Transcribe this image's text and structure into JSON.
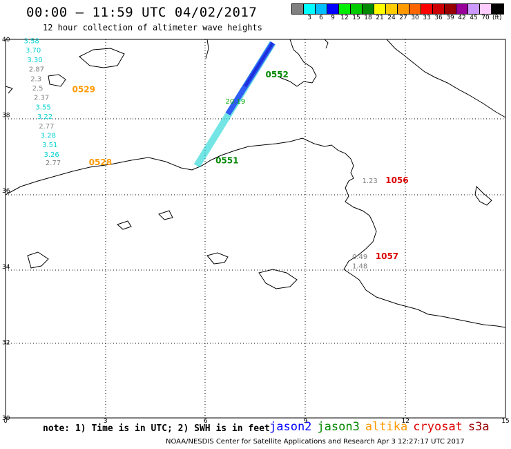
{
  "header": {
    "title": "00:00 – 11:59 UTC 04/02/2017",
    "subtitle": "12 hour collection of altimeter wave heights"
  },
  "legend": {
    "unit": "(ft)",
    "colors": [
      "#808080",
      "#00ffff",
      "#00bfff",
      "#0000ff",
      "#00ee00",
      "#00cc00",
      "#008800",
      "#ffff00",
      "#ffcc00",
      "#ff9900",
      "#ff6600",
      "#ff0000",
      "#cc0000",
      "#990000",
      "#990099",
      "#cc99ff",
      "#ffccff",
      "#000000"
    ],
    "ticks": [
      "3",
      "6",
      "9",
      "12",
      "15",
      "18",
      "21",
      "24",
      "27",
      "30",
      "33",
      "36",
      "39",
      "42",
      "45",
      "70"
    ]
  },
  "axes": {
    "x_ticks": [
      "0",
      "3",
      "6",
      "9",
      "12",
      "15"
    ],
    "y_ticks": [
      "40",
      "38",
      "36",
      "34",
      "32",
      "30"
    ]
  },
  "labels": [
    {
      "text": "3.58",
      "color": "#00d0d0",
      "lon": 0.55,
      "lat": 39.9
    },
    {
      "text": "3.70",
      "color": "#00d0d0",
      "lon": 0.6,
      "lat": 39.65
    },
    {
      "text": "3.30",
      "color": "#00d0d0",
      "lon": 0.65,
      "lat": 39.4
    },
    {
      "text": "2.87",
      "color": "#808080",
      "lon": 0.7,
      "lat": 39.15
    },
    {
      "text": "2.3",
      "color": "#808080",
      "lon": 0.75,
      "lat": 38.9
    },
    {
      "text": "2.5",
      "color": "#808080",
      "lon": 0.8,
      "lat": 38.65
    },
    {
      "text": "2.37",
      "color": "#808080",
      "lon": 0.85,
      "lat": 38.4
    },
    {
      "text": "3.55",
      "color": "#00d0d0",
      "lon": 0.9,
      "lat": 38.15
    },
    {
      "text": "3.22",
      "color": "#00d0d0",
      "lon": 0.95,
      "lat": 37.9
    },
    {
      "text": "2.77",
      "color": "#808080",
      "lon": 1.0,
      "lat": 37.65
    },
    {
      "text": "3.28",
      "color": "#00d0d0",
      "lon": 1.05,
      "lat": 37.4
    },
    {
      "text": "3.51",
      "color": "#00d0d0",
      "lon": 1.1,
      "lat": 37.15
    },
    {
      "text": "3.26",
      "color": "#00d0d0",
      "lon": 1.15,
      "lat": 36.9
    },
    {
      "text": "2.77",
      "color": "#808080",
      "lon": 1.2,
      "lat": 36.68
    },
    {
      "text": "1.23",
      "color": "#808080",
      "lon": 10.7,
      "lat": 36.2
    },
    {
      "text": "20.19",
      "color": "#00aa00",
      "lon": 6.6,
      "lat": 38.3
    },
    {
      "text": "0.49",
      "color": "#808080",
      "lon": 10.4,
      "lat": 34.2
    },
    {
      "text": "1.48",
      "color": "#808080",
      "lon": 10.4,
      "lat": 33.95
    }
  ],
  "pass_labels": [
    {
      "text": "0529",
      "color": "#ff9900",
      "lon": 2.0,
      "lat": 38.6
    },
    {
      "text": "0528",
      "color": "#ff9900",
      "lon": 2.5,
      "lat": 36.68
    },
    {
      "text": "0552",
      "color": "#008800",
      "lon": 7.8,
      "lat": 39.0
    },
    {
      "text": "0551",
      "color": "#008800",
      "lon": 6.3,
      "lat": 36.72
    },
    {
      "text": "1056",
      "color": "#dd0000",
      "lon": 11.4,
      "lat": 36.2
    },
    {
      "text": "1057",
      "color": "#dd0000",
      "lon": 11.1,
      "lat": 34.2
    }
  ],
  "footer": {
    "note": "note: 1) Time is in UTC; 2) SWH is in feet",
    "satellites": [
      {
        "name": "jason2",
        "color": "#0000ff"
      },
      {
        "name": "jason3",
        "color": "#008800"
      },
      {
        "name": "altika",
        "color": "#ff9900"
      },
      {
        "name": "cryosat",
        "color": "#dd0000"
      },
      {
        "name": "s3a",
        "color": "#990000"
      }
    ],
    "credit": "NOAA/NESDIS Center for Satellite Applications and Research   Apr  3 12:27:17 UTC 2017"
  }
}
